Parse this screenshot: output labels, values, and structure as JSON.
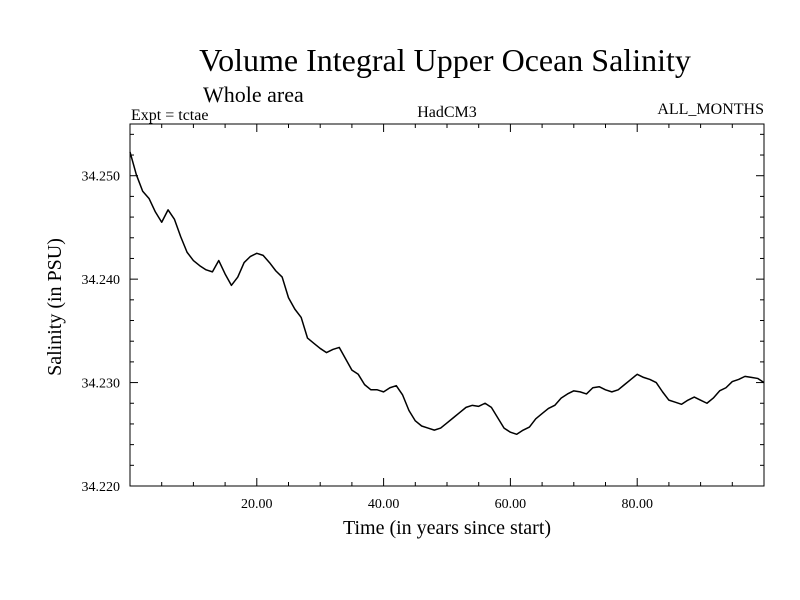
{
  "chart_data": {
    "type": "line",
    "title": "Volume Integral Upper Ocean Salinity",
    "subtitle": "Whole area",
    "expt_label": "Expt = tctae",
    "model_label": "HadCM3",
    "months_label": "ALL_MONTHS",
    "xlabel": "Time (in years since start)",
    "ylabel": "Salinity (in PSU)",
    "xlim": [
      0,
      100
    ],
    "ylim": [
      34.22,
      34.255
    ],
    "x_ticks": [
      20,
      40,
      60,
      80
    ],
    "x_tick_labels": [
      "20.00",
      "40.00",
      "60.00",
      "80.00"
    ],
    "y_ticks": [
      34.22,
      34.23,
      34.24,
      34.25
    ],
    "y_tick_labels": [
      "34.220",
      "34.230",
      "34.240",
      "34.250"
    ],
    "line_color": "#000000",
    "grid": false,
    "series": [
      {
        "x": [
          0.0,
          1.0,
          2.0,
          3.0,
          4.0,
          5.0,
          6.0,
          7.0,
          8.0,
          9.0,
          10.0,
          11.0,
          12.0,
          13.0,
          14.0,
          15.0,
          16.0,
          17.0,
          18.0,
          19.0,
          20.0,
          21.0,
          22.0,
          23.0,
          24.0,
          25.0,
          26.0,
          27.0,
          28.0,
          29.0,
          30.0,
          31.0,
          32.0,
          33.0,
          34.0,
          35.0,
          36.0,
          37.0,
          38.0,
          39.0,
          40.0,
          41.0,
          42.0,
          43.0,
          44.0,
          45.0,
          46.0,
          47.0,
          48.0,
          49.0,
          50.0,
          51.0,
          52.0,
          53.0,
          54.0,
          55.0,
          56.0,
          57.0,
          58.0,
          59.0,
          60.0,
          61.0,
          62.0,
          63.0,
          64.0,
          65.0,
          66.0,
          67.0,
          68.0,
          69.0,
          70.0,
          71.0,
          72.0,
          73.0,
          74.0,
          75.0,
          76.0,
          77.0,
          78.0,
          79.0,
          80.0,
          81.0,
          82.0,
          83.0,
          84.0,
          85.0,
          86.0,
          87.0,
          88.0,
          89.0,
          90.0,
          91.0,
          92.0,
          93.0,
          94.0,
          95.0,
          96.0,
          97.0,
          98.0,
          99.0,
          100.0
        ],
        "y": [
          34.2523,
          34.2501,
          34.2485,
          34.2478,
          34.2465,
          34.2455,
          34.2467,
          34.2458,
          34.2441,
          34.2426,
          34.2418,
          34.2413,
          34.2409,
          34.2407,
          34.2418,
          34.2405,
          34.2394,
          34.2402,
          34.2416,
          34.2422,
          34.2425,
          34.2423,
          34.2416,
          34.2408,
          34.2402,
          34.2382,
          34.2371,
          34.2363,
          34.2343,
          34.2338,
          34.2333,
          34.2329,
          34.2332,
          34.2334,
          34.2323,
          34.2312,
          34.2308,
          34.2298,
          34.2293,
          34.2293,
          34.2291,
          34.2295,
          34.2297,
          34.2288,
          34.2273,
          34.2263,
          34.2258,
          34.2256,
          34.2254,
          34.2256,
          34.2261,
          34.2266,
          34.2271,
          34.2276,
          34.2278,
          34.2277,
          34.228,
          34.2276,
          34.2266,
          34.2256,
          34.2252,
          34.225,
          34.2254,
          34.2257,
          34.2265,
          34.227,
          34.2275,
          34.2278,
          34.2285,
          34.2289,
          34.2292,
          34.2291,
          34.2289,
          34.2295,
          34.2296,
          34.2293,
          34.2291,
          34.2293,
          34.2298,
          34.2303,
          34.2308,
          34.2305,
          34.2303,
          34.23,
          34.2291,
          34.2283,
          34.2281,
          34.2279,
          34.2283,
          34.2286,
          34.2283,
          34.228,
          34.2285,
          34.2292,
          34.2295,
          34.2301,
          34.2303,
          34.2306,
          34.2305,
          34.2304,
          34.23
        ]
      }
    ]
  }
}
